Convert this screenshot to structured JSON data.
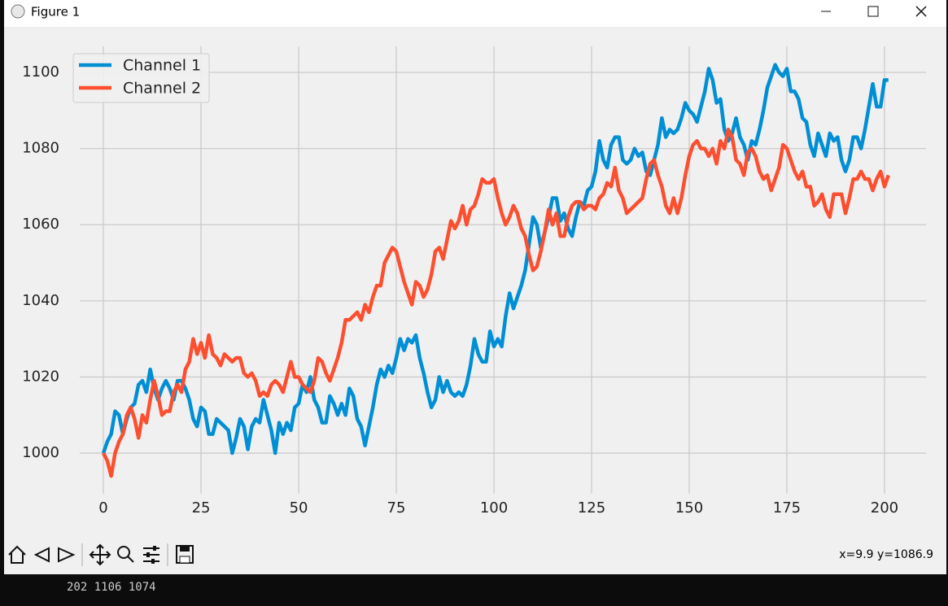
{
  "window": {
    "title": "Figure 1"
  },
  "status_text": "x=9.9 y=1086.9",
  "terminal": {
    "lines": [
      "202 1106 1074"
    ]
  },
  "chart_data": {
    "type": "line",
    "x": [
      0,
      1,
      2,
      3,
      4,
      5,
      6,
      7,
      8,
      9,
      10,
      11,
      12,
      13,
      14,
      15,
      16,
      17,
      18,
      19,
      20,
      21,
      22,
      23,
      24,
      25,
      26,
      27,
      28,
      29,
      30,
      31,
      32,
      33,
      34,
      35,
      36,
      37,
      38,
      39,
      40,
      41,
      42,
      43,
      44,
      45,
      46,
      47,
      48,
      49,
      50,
      51,
      52,
      53,
      54,
      55,
      56,
      57,
      58,
      59,
      60,
      61,
      62,
      63,
      64,
      65,
      66,
      67,
      68,
      69,
      70,
      71,
      72,
      73,
      74,
      75,
      76,
      77,
      78,
      79,
      80,
      81,
      82,
      83,
      84,
      85,
      86,
      87,
      88,
      89,
      90,
      91,
      92,
      93,
      94,
      95,
      96,
      97,
      98,
      99,
      100,
      101,
      102,
      103,
      104,
      105,
      106,
      107,
      108,
      109,
      110,
      111,
      112,
      113,
      114,
      115,
      116,
      117,
      118,
      119,
      120,
      121,
      122,
      123,
      124,
      125,
      126,
      127,
      128,
      129,
      130,
      131,
      132,
      133,
      134,
      135,
      136,
      137,
      138,
      139,
      140,
      141,
      142,
      143,
      144,
      145,
      146,
      147,
      148,
      149,
      150,
      151,
      152,
      153,
      154,
      155,
      156,
      157,
      158,
      159,
      160,
      161,
      162,
      163,
      164,
      165,
      166,
      167,
      168,
      169,
      170,
      171,
      172,
      173,
      174,
      175,
      176,
      177,
      178,
      179,
      180,
      181,
      182,
      183,
      184,
      185,
      186,
      187,
      188,
      189,
      190,
      191,
      192,
      193,
      194,
      195,
      196,
      197,
      198,
      199,
      200,
      201
    ],
    "series": [
      {
        "name": "Channel 1",
        "color": "#008fd5",
        "values": [
          1000,
          1003,
          1005,
          1011,
          1010,
          1005,
          1009,
          1012,
          1013,
          1018,
          1019,
          1016,
          1022,
          1017,
          1014,
          1017,
          1019,
          1017,
          1014,
          1019,
          1019,
          1017,
          1014,
          1009,
          1007,
          1012,
          1011,
          1005,
          1005,
          1009,
          1008,
          1007,
          1006,
          1000,
          1004,
          1009,
          1007,
          1001,
          1007,
          1009,
          1008,
          1014,
          1010,
          1006,
          1000,
          1008,
          1005,
          1008,
          1006,
          1012,
          1013,
          1018,
          1016,
          1020,
          1014,
          1012,
          1008,
          1008,
          1015,
          1013,
          1010,
          1013,
          1010,
          1017,
          1015,
          1009,
          1007,
          1002,
          1007,
          1012,
          1018,
          1022,
          1020,
          1023,
          1021,
          1025,
          1030,
          1027,
          1030,
          1029,
          1031,
          1025,
          1021,
          1016,
          1012,
          1014,
          1020,
          1016,
          1019,
          1016,
          1015,
          1016,
          1015,
          1018,
          1023,
          1030,
          1026,
          1024,
          1024,
          1032,
          1028,
          1030,
          1028,
          1036,
          1042,
          1038,
          1041,
          1044,
          1048,
          1055,
          1062,
          1060,
          1054,
          1058,
          1062,
          1067,
          1067,
          1061,
          1063,
          1059,
          1057,
          1062,
          1066,
          1065,
          1069,
          1070,
          1074,
          1082,
          1077,
          1075,
          1081,
          1083,
          1083,
          1077,
          1076,
          1077,
          1080,
          1078,
          1079,
          1074,
          1073,
          1077,
          1081,
          1088,
          1083,
          1085,
          1084,
          1085,
          1088,
          1092,
          1090,
          1089,
          1087,
          1091,
          1095,
          1101,
          1098,
          1092,
          1093,
          1085,
          1082,
          1084,
          1088,
          1083,
          1081,
          1077,
          1082,
          1081,
          1085,
          1090,
          1096,
          1099,
          1102,
          1100,
          1099,
          1101,
          1095,
          1095,
          1093,
          1088,
          1087,
          1081,
          1078,
          1084,
          1081,
          1078,
          1084,
          1082,
          1083,
          1077,
          1074,
          1077,
          1083,
          1083,
          1080,
          1085,
          1091,
          1097,
          1091,
          1091,
          1098,
          1098
        ]
      },
      {
        "name": "Channel 2",
        "color": "#fc4f30",
        "values": [
          1000,
          998,
          994,
          1000,
          1003,
          1005,
          1010,
          1012,
          1009,
          1004,
          1010,
          1008,
          1014,
          1019,
          1015,
          1010,
          1011,
          1011,
          1016,
          1018,
          1016,
          1022,
          1024,
          1030,
          1026,
          1029,
          1025,
          1031,
          1026,
          1025,
          1023,
          1026,
          1025,
          1024,
          1025,
          1025,
          1021,
          1020,
          1021,
          1019,
          1015,
          1016,
          1015,
          1018,
          1019,
          1018,
          1016,
          1020,
          1024,
          1020,
          1020,
          1018,
          1017,
          1016,
          1019,
          1025,
          1024,
          1021,
          1019,
          1022,
          1025,
          1029,
          1035,
          1035,
          1036,
          1037,
          1035,
          1039,
          1037,
          1041,
          1044,
          1044,
          1050,
          1052,
          1054,
          1053,
          1049,
          1045,
          1042,
          1039,
          1045,
          1044,
          1041,
          1043,
          1047,
          1053,
          1054,
          1051,
          1056,
          1061,
          1059,
          1061,
          1065,
          1060,
          1064,
          1065,
          1068,
          1072,
          1071,
          1071,
          1072,
          1067,
          1063,
          1060,
          1062,
          1065,
          1063,
          1059,
          1057,
          1052,
          1048,
          1049,
          1053,
          1058,
          1064,
          1060,
          1063,
          1057,
          1057,
          1062,
          1065,
          1066,
          1066,
          1064,
          1065,
          1065,
          1064,
          1067,
          1068,
          1071,
          1070,
          1075,
          1069,
          1067,
          1063,
          1064,
          1065,
          1066,
          1067,
          1072,
          1076,
          1077,
          1073,
          1070,
          1065,
          1063,
          1067,
          1063,
          1067,
          1073,
          1078,
          1081,
          1082,
          1080,
          1080,
          1078,
          1080,
          1076,
          1082,
          1080,
          1085,
          1083,
          1077,
          1076,
          1073,
          1079,
          1080,
          1078,
          1074,
          1072,
          1073,
          1069,
          1072,
          1075,
          1081,
          1080,
          1077,
          1074,
          1072,
          1074,
          1070,
          1070,
          1065,
          1066,
          1068,
          1064,
          1062,
          1068,
          1068,
          1068,
          1063,
          1067,
          1072,
          1072,
          1074,
          1072,
          1072,
          1069,
          1072,
          1074,
          1070,
          1073
        ]
      }
    ],
    "xlim": [
      -10.05,
      211.05
    ],
    "xticks": [
      0,
      25,
      50,
      75,
      100,
      125,
      150,
      175,
      200
    ],
    "ylim": [
      988.6,
      1107.4
    ],
    "yticks": [
      1000,
      1020,
      1040,
      1060,
      1080,
      1100
    ],
    "grid": true,
    "legend": "upper left"
  }
}
